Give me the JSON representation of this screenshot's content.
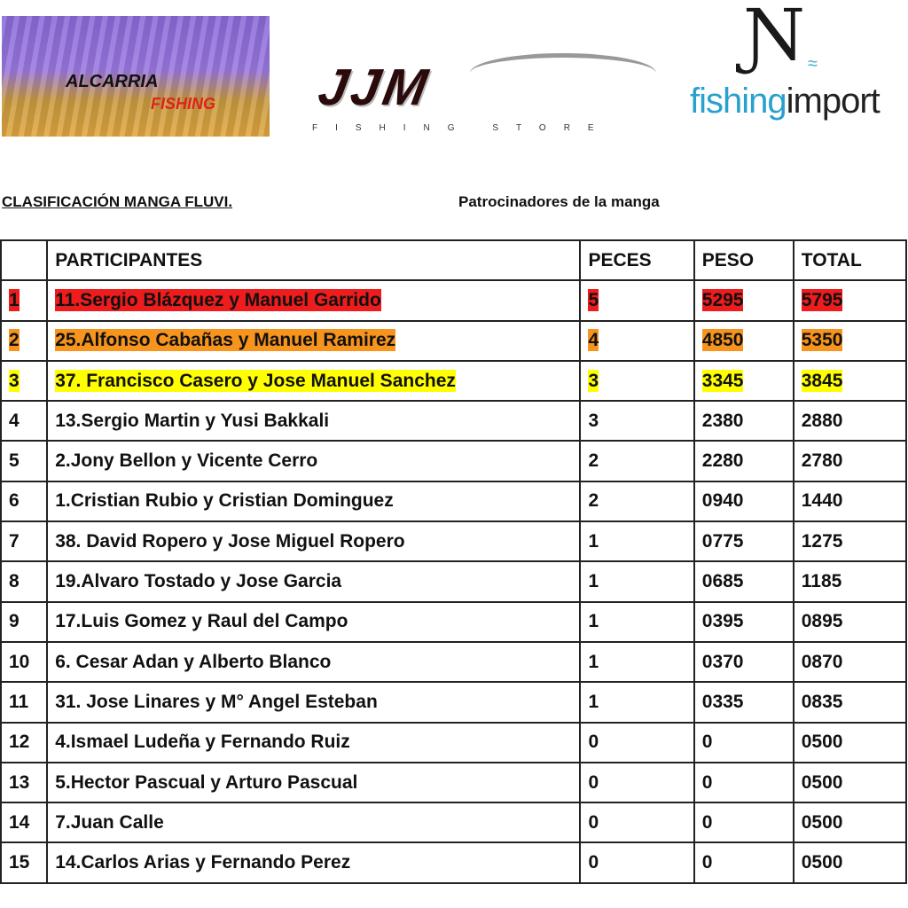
{
  "logos": {
    "left": {
      "line1": "ALCARRIA",
      "line2": "FISHING"
    },
    "center": {
      "name": "JJM",
      "tagline": "FISHING STORE"
    },
    "right": {
      "part1": "fishing",
      "part2": "import"
    }
  },
  "heading": "CLASIFICACIÓN MANGA FLUVI",
  "heading_suffix": ".",
  "sponsors_label": "Patrocinadores de la manga",
  "table": {
    "headers": [
      "",
      "PARTICIPANTES",
      "PECES",
      "PESO",
      "TOTAL"
    ],
    "highlight_colors": {
      "1": "#ee1c1c",
      "2": "#f7941d",
      "3": "#ffff00"
    },
    "rows": [
      {
        "pos": "1",
        "name": "11.Sergio Blázquez y Manuel Garrido",
        "peces": "5",
        "peso": "5295",
        "total": "5795"
      },
      {
        "pos": "2",
        "name": "25.Alfonso Cabañas y Manuel Ramirez",
        "peces": "4",
        "peso": "4850",
        "total": "5350"
      },
      {
        "pos": "3",
        "name": "37. Francisco Casero y Jose Manuel Sanchez",
        "peces": "3",
        "peso": "3345",
        "total": "3845"
      },
      {
        "pos": "4",
        "name": "13.Sergio Martin y Yusi Bakkali",
        "peces": "3",
        "peso": "2380",
        "total": "2880"
      },
      {
        "pos": "5",
        "name": "2.Jony Bellon y Vicente Cerro",
        "peces": "2",
        "peso": "2280",
        "total": "2780"
      },
      {
        "pos": "6",
        "name": "1.Cristian Rubio y Cristian Dominguez",
        "peces": "2",
        "peso": "0940",
        "total": "1440"
      },
      {
        "pos": "7",
        "name": "38. David Ropero y Jose Miguel Ropero",
        "peces": "1",
        "peso": "0775",
        "total": "1275"
      },
      {
        "pos": "8",
        "name": "19.Alvaro Tostado y Jose Garcia",
        "peces": "1",
        "peso": "0685",
        "total": "1185"
      },
      {
        "pos": "9",
        "name": "17.Luis Gomez y Raul del Campo",
        "peces": "1",
        "peso": "0395",
        "total": "0895"
      },
      {
        "pos": "10",
        "name": "6. Cesar Adan y Alberto Blanco",
        "peces": "1",
        "peso": "0370",
        "total": "0870"
      },
      {
        "pos": "11",
        "name": "31. Jose Linares y M° Angel Esteban",
        "peces": "1",
        "peso": "0335",
        "total": "0835"
      },
      {
        "pos": "12",
        "name": "4.Ismael Ludeña y Fernando Ruiz",
        "peces": "0",
        "peso": "0",
        "total": "0500"
      },
      {
        "pos": "13",
        "name": "5.Hector Pascual y Arturo Pascual",
        "peces": "0",
        "peso": "0",
        "total": "0500"
      },
      {
        "pos": "14",
        "name": "7.Juan Calle",
        "peces": "0",
        "peso": "0",
        "total": "0500"
      },
      {
        "pos": "15",
        "name": "14.Carlos Arias y Fernando Perez",
        "peces": "0",
        "peso": "0",
        "total": "0500"
      }
    ]
  }
}
